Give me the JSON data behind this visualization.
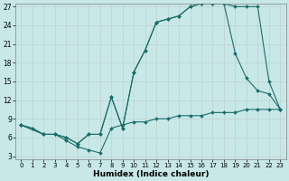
{
  "background_color": "#c8e8e8",
  "grid_color_minor": "#d8e8e8",
  "grid_color_major": "#c0d0d0",
  "line_color": "#1a6e6a",
  "xlabel": "Humidex (Indice chaleur)",
  "xlim_min": 0,
  "xlim_max": 23,
  "ylim_min": 3,
  "ylim_max": 27,
  "yticks": [
    3,
    6,
    9,
    12,
    15,
    18,
    21,
    24,
    27
  ],
  "xticks": [
    0,
    1,
    2,
    3,
    4,
    5,
    6,
    7,
    8,
    9,
    10,
    11,
    12,
    13,
    14,
    15,
    16,
    17,
    18,
    19,
    20,
    21,
    22,
    23
  ],
  "line1_x": [
    0,
    1,
    2,
    3,
    4,
    5,
    6,
    7,
    8,
    9,
    10,
    11,
    12,
    13,
    14,
    15,
    16,
    17,
    18,
    19,
    20,
    21,
    22,
    23
  ],
  "line1_y": [
    8.0,
    7.5,
    6.5,
    6.5,
    5.5,
    4.5,
    4.0,
    3.5,
    7.5,
    8.0,
    8.5,
    8.5,
    9.0,
    9.0,
    9.5,
    9.5,
    9.5,
    10.0,
    10.0,
    10.0,
    10.5,
    10.5,
    10.5,
    10.5
  ],
  "line2_x": [
    0,
    2,
    3,
    4,
    5,
    6,
    7,
    8,
    9,
    10,
    11,
    12,
    13,
    14,
    15,
    16,
    17,
    18,
    19,
    20,
    21,
    22,
    23
  ],
  "line2_y": [
    8.0,
    6.5,
    6.5,
    6.0,
    5.0,
    6.5,
    6.5,
    12.5,
    7.5,
    16.5,
    20.0,
    24.5,
    25.0,
    25.5,
    27.0,
    27.5,
    27.5,
    27.5,
    27.0,
    27.0,
    27.0,
    15.0,
    10.5
  ],
  "line3_x": [
    0,
    2,
    3,
    4,
    5,
    6,
    7,
    8,
    9,
    10,
    11,
    12,
    13,
    14,
    15,
    16,
    17,
    18,
    19,
    20,
    21,
    22,
    23
  ],
  "line3_y": [
    8.0,
    6.5,
    6.5,
    6.0,
    5.0,
    6.5,
    6.5,
    12.5,
    7.5,
    16.5,
    20.0,
    24.5,
    25.0,
    25.5,
    27.0,
    27.5,
    27.5,
    27.5,
    19.5,
    15.5,
    13.5,
    13.0,
    10.5
  ],
  "tick_label_fontsize": 5.5,
  "xlabel_fontsize": 6.5,
  "marker_size": 2.0,
  "line_width": 0.8
}
